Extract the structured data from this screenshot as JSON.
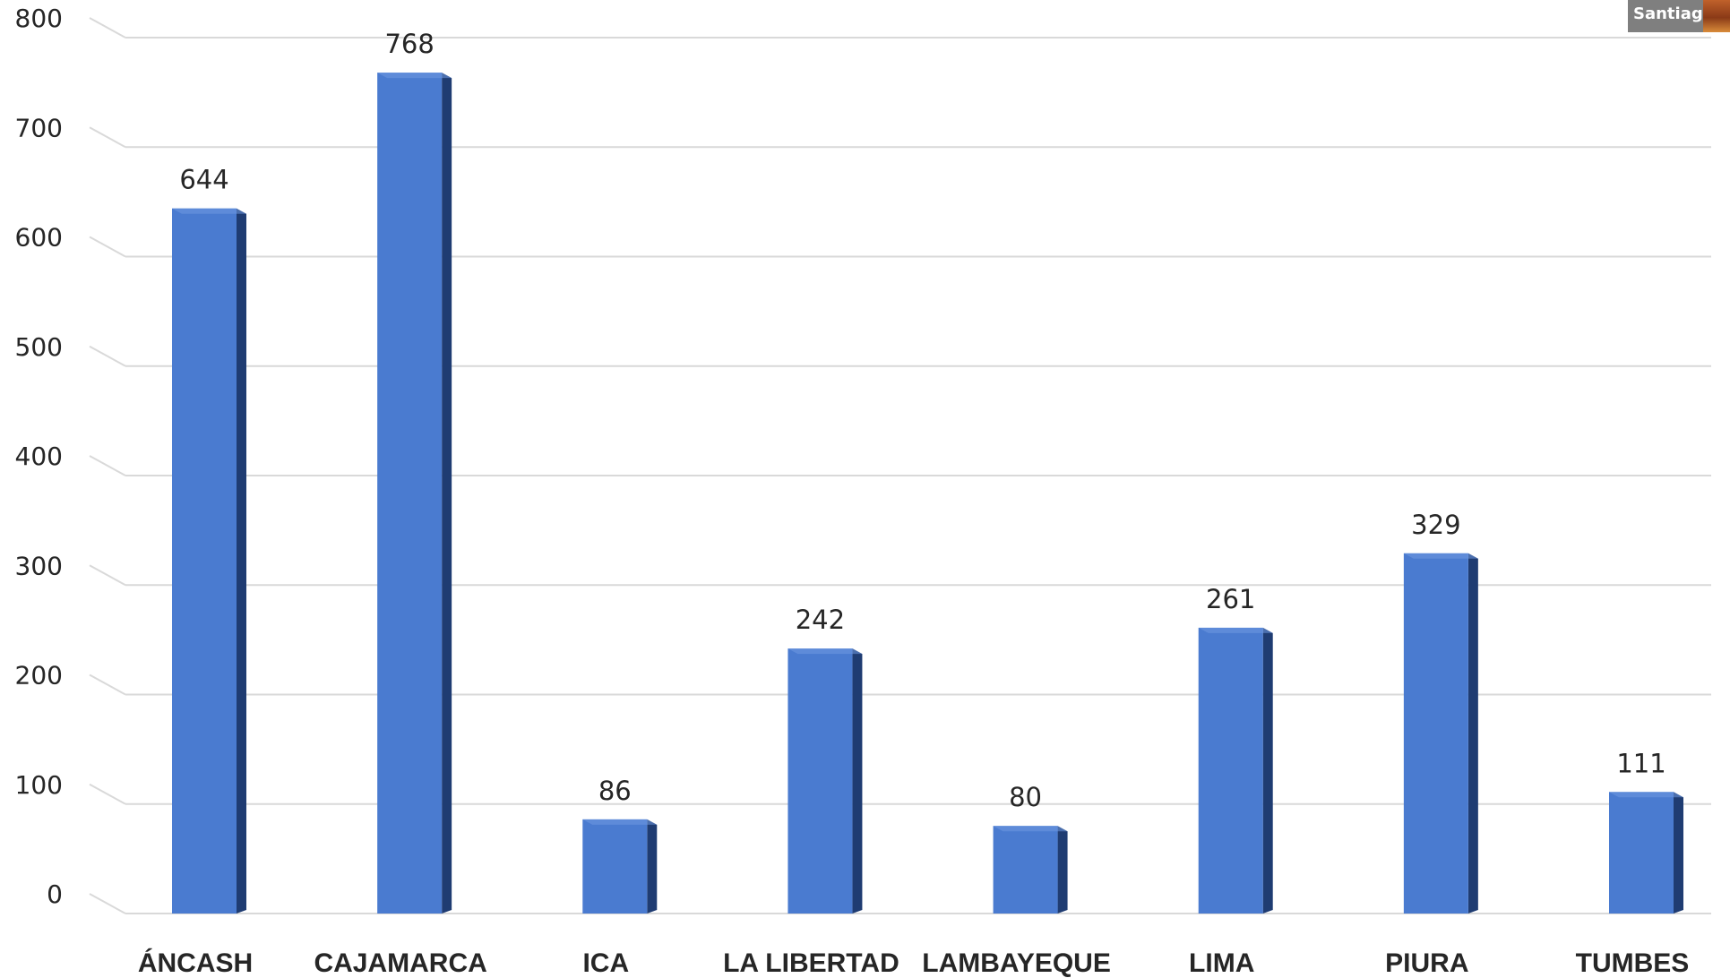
{
  "overlay": {
    "watermark_text": "Santiago Sa"
  },
  "colors": {
    "bar_front": "#4a7bd0",
    "bar_side": "#1f3c72",
    "bar_top": "#6f99e0",
    "gridline": "#d9d9d9",
    "text": "#262626"
  },
  "chart_data": {
    "type": "bar",
    "title": "",
    "xlabel": "",
    "ylabel": "",
    "categories": [
      "ÁNCASH",
      "CAJAMARCA",
      "ICA",
      "LA LIBERTAD",
      "LAMBAYEQUE",
      "LIMA",
      "PIURA",
      "TUMBES"
    ],
    "values": [
      644,
      768,
      86,
      242,
      80,
      261,
      329,
      111
    ],
    "data_labels": [
      "644",
      "768",
      "86",
      "242",
      "80",
      "261",
      "329",
      "111"
    ],
    "ylim": [
      0,
      800
    ],
    "yticks": [
      0,
      100,
      200,
      300,
      400,
      500,
      600,
      700,
      800
    ],
    "ytick_labels": [
      "0",
      "100",
      "200",
      "300",
      "400",
      "500",
      "600",
      "700",
      "800"
    ],
    "grid": true,
    "legend": "none",
    "style": "3d-column"
  }
}
